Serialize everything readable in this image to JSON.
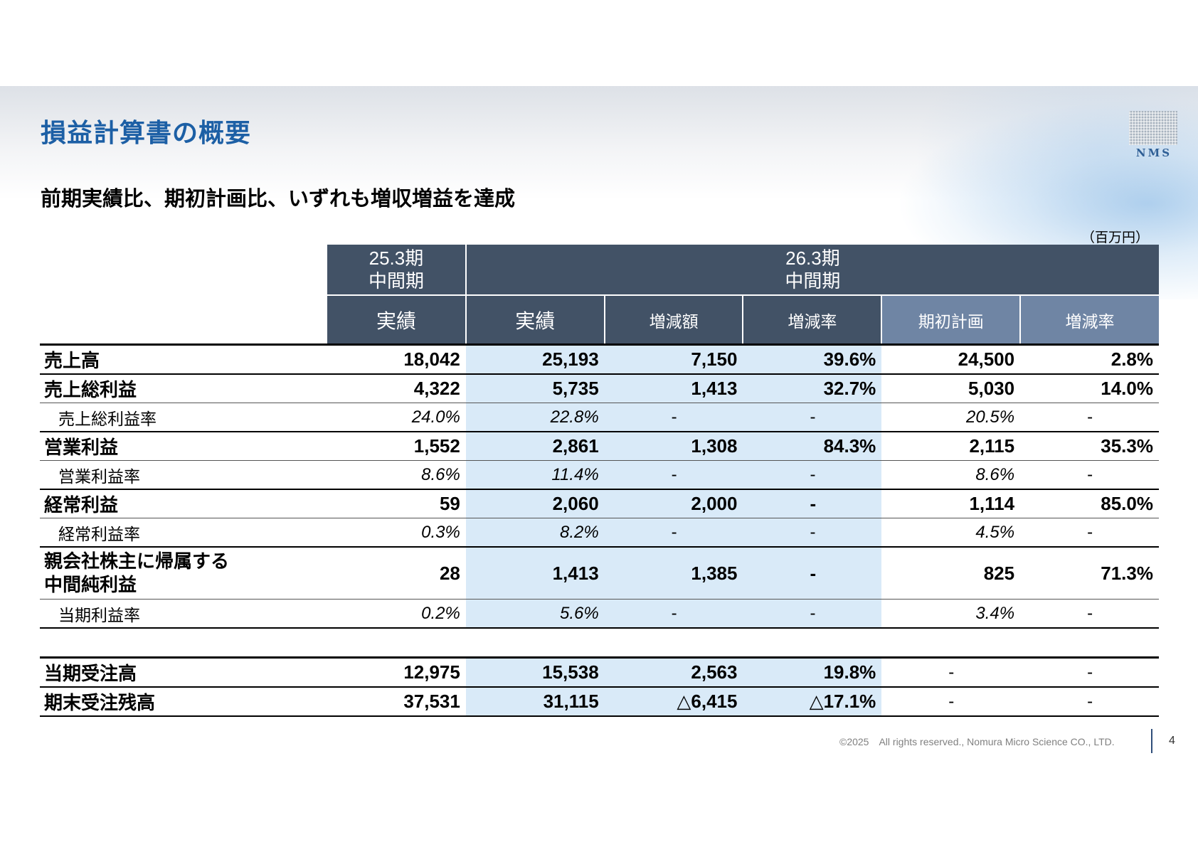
{
  "title": "損益計算書の概要",
  "subtitle": "前期実績比、期初計画比、いずれも増収増益を達成",
  "unit": "（百万円）",
  "logo_text": "NMS",
  "colors": {
    "title": "#1c5fa5",
    "header": "#425266",
    "header_plan": "#6f85a4",
    "highlight": "#d9eaf8"
  },
  "header": {
    "prev_period": "25.3期\n中間期",
    "cur_period": "26.3期\n中間期",
    "cols": [
      "実績",
      "実績",
      "増減額",
      "増減率",
      "期初計画",
      "増減率"
    ]
  },
  "rows": [
    {
      "label": "売上高",
      "values": [
        "18,042",
        "25,193",
        "7,150",
        "39.6%",
        "24,500",
        "2.8%"
      ]
    },
    {
      "label": "売上総利益",
      "values": [
        "4,322",
        "5,735",
        "1,413",
        "32.7%",
        "5,030",
        "14.0%"
      ]
    },
    {
      "label": "売上総利益率",
      "values": [
        "24.0%",
        "22.8%",
        "-",
        "-",
        "20.5%",
        "-"
      ]
    },
    {
      "label": "営業利益",
      "values": [
        "1,552",
        "2,861",
        "1,308",
        "84.3%",
        "2,115",
        "35.3%"
      ]
    },
    {
      "label": "営業利益率",
      "values": [
        "8.6%",
        "11.4%",
        "-",
        "-",
        "8.6%",
        "-"
      ]
    },
    {
      "label": "経常利益",
      "values": [
        "59",
        "2,060",
        "2,000",
        "-",
        "1,114",
        "85.0%"
      ]
    },
    {
      "label": "経常利益率",
      "values": [
        "0.3%",
        "8.2%",
        "-",
        "-",
        "4.5%",
        "-"
      ]
    },
    {
      "label": "親会社株主に帰属する\n中間純利益",
      "values": [
        "28",
        "1,413",
        "1,385",
        "-",
        "825",
        "71.3%"
      ]
    },
    {
      "label": "当期利益率",
      "values": [
        "0.2%",
        "5.6%",
        "-",
        "-",
        "3.4%",
        "-"
      ]
    },
    {
      "label": "当期受注高",
      "values": [
        "12,975",
        "15,538",
        "2,563",
        "19.8%",
        "-",
        "-"
      ]
    },
    {
      "label": "期末受注残高",
      "values": [
        "37,531",
        "31,115",
        "△6,415",
        "△17.1%",
        "-",
        "-"
      ]
    }
  ],
  "footer": "©2025　All rights reserved., Nomura Micro Science CO., LTD.",
  "page_number": "4"
}
